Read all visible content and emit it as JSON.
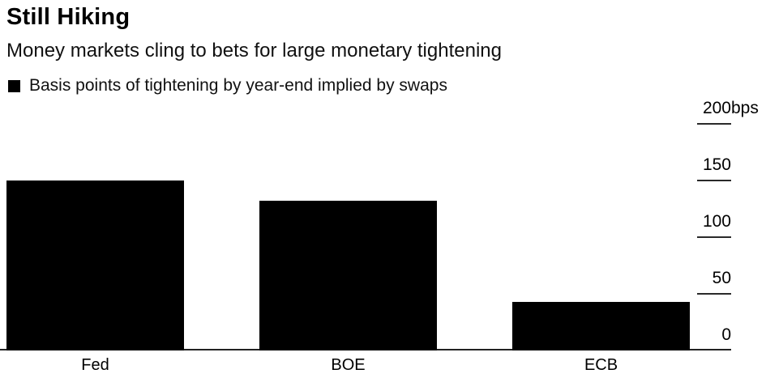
{
  "header": {
    "title": "Still Hiking",
    "subtitle": "Money markets cling to bets for large monetary tightening"
  },
  "legend": {
    "label": "Basis points of tightening by year-end implied by swaps",
    "swatch_color": "#000000"
  },
  "chart_data": {
    "type": "bar",
    "title": "Still Hiking",
    "subtitle": "Money markets cling to bets for large monetary tightening",
    "series_name": "Basis points of tightening by year-end implied by swaps",
    "categories": [
      "Fed",
      "BOE",
      "ECB"
    ],
    "values": [
      150,
      132,
      43
    ],
    "unit": "bps",
    "yticks": [
      0,
      50,
      100,
      150,
      200
    ],
    "ylim": [
      0,
      200
    ],
    "axis_side": "right",
    "grid": "off",
    "legend_position": "top-left",
    "bar_color": "#000000",
    "background_color": "#ffffff"
  }
}
